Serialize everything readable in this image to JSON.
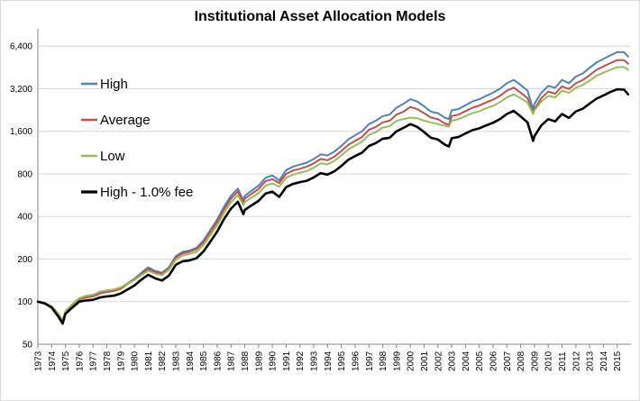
{
  "chart_data": {
    "type": "line",
    "title": "Institutional Asset Allocation Models",
    "xlabel": "",
    "ylabel": "",
    "y_scale": "log",
    "ylim": [
      50,
      8000
    ],
    "y_ticks": [
      50,
      100,
      200,
      400,
      800,
      1600,
      3200,
      6400
    ],
    "y_tick_labels": [
      "50",
      "100",
      "200",
      "400",
      "800",
      "1,600",
      "3,200",
      "6,400"
    ],
    "x_ticks": [
      1973,
      1974,
      1975,
      1976,
      1977,
      1978,
      1979,
      1980,
      1981,
      1982,
      1983,
      1984,
      1985,
      1986,
      1987,
      1988,
      1989,
      1990,
      1991,
      1992,
      1993,
      1994,
      1995,
      1996,
      1997,
      1998,
      1999,
      2000,
      2001,
      2002,
      2003,
      2004,
      2005,
      2006,
      2007,
      2008,
      2009,
      2010,
      2011,
      2012,
      2013,
      2014,
      2015
    ],
    "xlim": [
      1973,
      2016
    ],
    "legend_position": "top-left",
    "grid": {
      "horizontal": true,
      "vertical": false
    },
    "x": [
      1973,
      1973.5,
      1974,
      1974.5,
      1974.8,
      1975,
      1975.5,
      1976,
      1976.5,
      1977,
      1977.5,
      1978,
      1978.5,
      1979,
      1979.5,
      1980,
      1980.5,
      1981,
      1981.5,
      1982,
      1982.5,
      1983,
      1983.5,
      1984,
      1984.5,
      1985,
      1985.5,
      1986,
      1986.5,
      1987,
      1987.5,
      1987.9,
      1988,
      1988.5,
      1989,
      1989.5,
      1990,
      1990.5,
      1991,
      1991.5,
      1992,
      1992.5,
      1993,
      1993.5,
      1994,
      1994.5,
      1995,
      1995.5,
      1996,
      1996.5,
      1997,
      1997.5,
      1998,
      1998.5,
      1999,
      1999.5,
      2000,
      2000.5,
      2001,
      2001.5,
      2002,
      2002.5,
      2002.8,
      2003,
      2003.5,
      2004,
      2004.5,
      2005,
      2005.5,
      2006,
      2006.5,
      2007,
      2007.5,
      2008,
      2008.5,
      2008.9,
      2009,
      2009.5,
      2010,
      2010.5,
      2011,
      2011.5,
      2012,
      2012.5,
      2013,
      2013.5,
      2014,
      2014.5,
      2015,
      2015.5,
      2015.8
    ],
    "series": [
      {
        "name": "High",
        "color": "#4f81bd",
        "width": 2,
        "values": [
          100,
          98,
          92,
          80,
          72,
          85,
          95,
          105,
          108,
          110,
          115,
          118,
          120,
          125,
          135,
          145,
          160,
          175,
          165,
          160,
          175,
          210,
          225,
          230,
          240,
          270,
          320,
          380,
          470,
          560,
          630,
          520,
          560,
          610,
          660,
          750,
          780,
          720,
          850,
          900,
          930,
          960,
          1020,
          1100,
          1080,
          1150,
          1260,
          1400,
          1500,
          1600,
          1800,
          1900,
          2050,
          2100,
          2350,
          2500,
          2700,
          2600,
          2400,
          2200,
          2150,
          2000,
          1950,
          2250,
          2300,
          2450,
          2600,
          2700,
          2850,
          3000,
          3200,
          3500,
          3700,
          3400,
          3100,
          2300,
          2500,
          3000,
          3350,
          3250,
          3700,
          3500,
          3900,
          4100,
          4500,
          4900,
          5200,
          5500,
          5800,
          5800,
          5400
        ]
      },
      {
        "name": "Average",
        "color": "#c0504d",
        "width": 2,
        "values": [
          100,
          98,
          92,
          80,
          73,
          85,
          95,
          104,
          107,
          109,
          114,
          117,
          119,
          123,
          133,
          143,
          157,
          170,
          162,
          157,
          172,
          205,
          220,
          225,
          235,
          262,
          310,
          365,
          450,
          535,
          600,
          500,
          535,
          580,
          625,
          710,
          735,
          690,
          800,
          845,
          870,
          900,
          950,
          1020,
          1000,
          1060,
          1160,
          1280,
          1370,
          1460,
          1640,
          1720,
          1850,
          1900,
          2100,
          2200,
          2380,
          2300,
          2150,
          2000,
          1950,
          1820,
          1780,
          2050,
          2100,
          2220,
          2350,
          2430,
          2560,
          2680,
          2850,
          3100,
          3260,
          3000,
          2750,
          2150,
          2300,
          2750,
          3050,
          2950,
          3330,
          3180,
          3500,
          3680,
          4000,
          4350,
          4600,
          4850,
          5100,
          5100,
          4800
        ]
      },
      {
        "name": "Low",
        "color": "#9bbb59",
        "width": 2,
        "values": [
          100,
          98,
          93,
          82,
          74,
          86,
          96,
          106,
          110,
          112,
          118,
          120,
          122,
          126,
          134,
          142,
          154,
          165,
          158,
          154,
          168,
          198,
          212,
          217,
          225,
          250,
          295,
          345,
          425,
          505,
          565,
          480,
          505,
          545,
          585,
          660,
          685,
          650,
          750,
          790,
          815,
          840,
          885,
          950,
          935,
          990,
          1080,
          1190,
          1270,
          1350,
          1510,
          1580,
          1700,
          1740,
          1900,
          1950,
          2000,
          1980,
          1900,
          1850,
          1800,
          1750,
          1730,
          1900,
          1950,
          2050,
          2150,
          2220,
          2330,
          2420,
          2570,
          2780,
          2920,
          2750,
          2550,
          2120,
          2250,
          2600,
          2850,
          2780,
          3100,
          3000,
          3250,
          3400,
          3650,
          3950,
          4150,
          4350,
          4550,
          4550,
          4350
        ]
      },
      {
        "name": "High - 1.0% fee",
        "color": "#000000",
        "width": 2.6,
        "values": [
          100,
          97,
          91,
          78,
          70,
          82,
          91,
          100,
          102,
          103,
          107,
          109,
          110,
          114,
          122,
          130,
          143,
          155,
          146,
          141,
          153,
          182,
          193,
          196,
          203,
          226,
          265,
          313,
          384,
          455,
          508,
          415,
          445,
          480,
          515,
          580,
          600,
          550,
          645,
          680,
          700,
          715,
          755,
          810,
          790,
          835,
          910,
          1005,
          1070,
          1130,
          1260,
          1320,
          1420,
          1440,
          1600,
          1690,
          1800,
          1720,
          1580,
          1440,
          1400,
          1290,
          1250,
          1430,
          1460,
          1545,
          1630,
          1680,
          1760,
          1840,
          1950,
          2120,
          2230,
          2040,
          1850,
          1370,
          1480,
          1760,
          1950,
          1880,
          2120,
          1990,
          2210,
          2310,
          2510,
          2720,
          2870,
          3030,
          3170,
          3150,
          2920
        ]
      }
    ]
  }
}
